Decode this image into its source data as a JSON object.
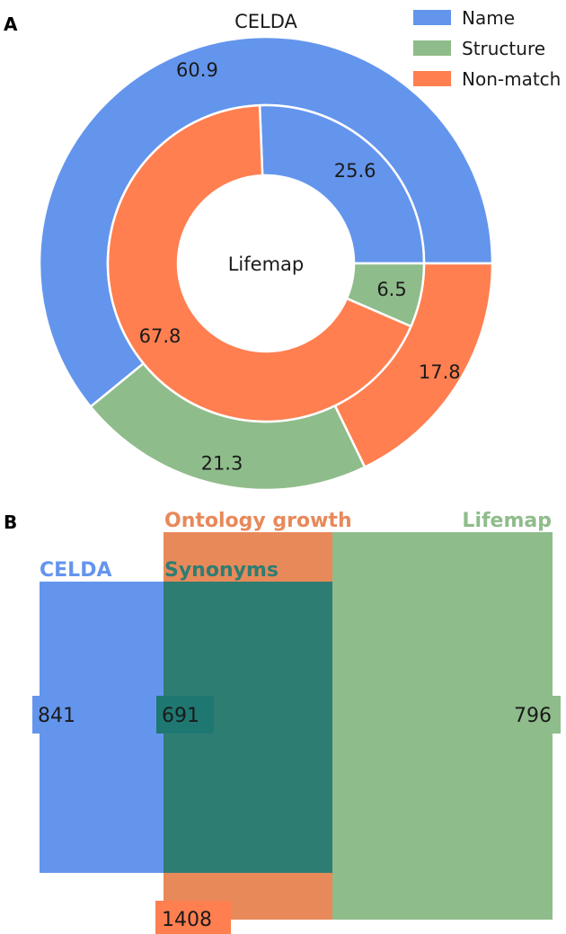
{
  "figure": {
    "panel_a_label": "A",
    "panel_b_label": "B"
  },
  "colors": {
    "name": "#6495ED",
    "structure": "#8FBC8B",
    "non_match": "#FF7F50",
    "ontology_growth": "#E8895A",
    "synonyms": "#2E7D73"
  },
  "chart_data": [
    {
      "type": "pie",
      "subtype": "nested-donut",
      "outer_title": "CELDA",
      "inner_title": "Lifemap",
      "legend": {
        "placement": "top-right",
        "entries": [
          "Name",
          "Structure",
          "Non-match"
        ]
      },
      "rings": [
        {
          "name": "CELDA",
          "ring": "outer",
          "slices": [
            {
              "category": "Name",
              "value": 60.9
            },
            {
              "category": "Structure",
              "value": 21.3
            },
            {
              "category": "Non-match",
              "value": 17.8
            }
          ]
        },
        {
          "name": "Lifemap",
          "ring": "inner",
          "slices": [
            {
              "category": "Name",
              "value": 25.6
            },
            {
              "category": "Non-match",
              "value": 67.8
            },
            {
              "category": "Structure",
              "value": 6.5
            }
          ]
        }
      ]
    },
    {
      "type": "venn",
      "sets": [
        {
          "name": "CELDA",
          "size": 841
        },
        {
          "name": "Lifemap",
          "size": 796
        },
        {
          "name": "Ontology growth",
          "size": 1408
        }
      ],
      "intersections": [
        {
          "name": "Synonyms",
          "sets": [
            "CELDA",
            "Lifemap"
          ],
          "size": 691
        }
      ],
      "region_values": {
        "celda_only": "841",
        "synonyms": "691",
        "lifemap_only": "796",
        "ontology_growth": "1408"
      },
      "labels": {
        "celda": "CELDA",
        "synonyms": "Synonyms",
        "ontology_growth": "Ontology growth",
        "lifemap": "Lifemap"
      }
    }
  ]
}
